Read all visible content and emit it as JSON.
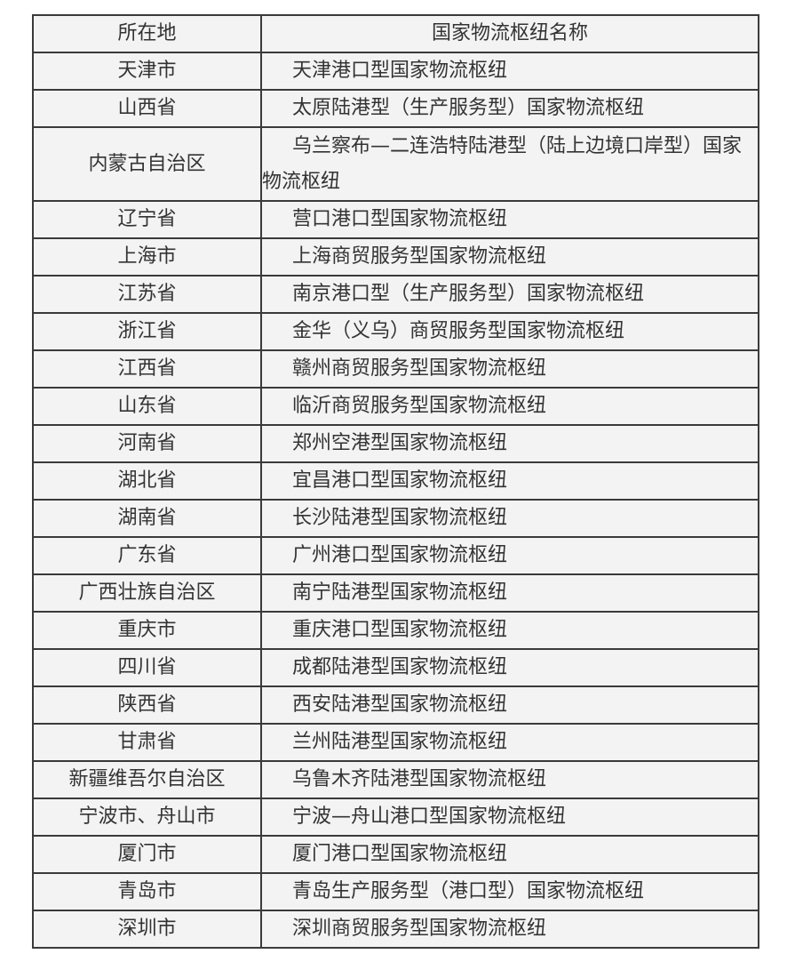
{
  "table": {
    "headers": [
      "所在地",
      "国家物流枢纽名称"
    ],
    "rows": [
      {
        "location": "天津市",
        "hub": "天津港口型国家物流枢纽"
      },
      {
        "location": "山西省",
        "hub": "太原陆港型（生产服务型）国家物流枢纽"
      },
      {
        "location": "内蒙古自治区",
        "hub": "乌兰察布—二连浩特陆港型（陆上边境口岸型）国家物流枢纽"
      },
      {
        "location": "辽宁省",
        "hub": "营口港口型国家物流枢纽"
      },
      {
        "location": "上海市",
        "hub": "上海商贸服务型国家物流枢纽"
      },
      {
        "location": "江苏省",
        "hub": "南京港口型（生产服务型）国家物流枢纽"
      },
      {
        "location": "浙江省",
        "hub": "金华（义乌）商贸服务型国家物流枢纽"
      },
      {
        "location": "江西省",
        "hub": "赣州商贸服务型国家物流枢纽"
      },
      {
        "location": "山东省",
        "hub": "临沂商贸服务型国家物流枢纽"
      },
      {
        "location": "河南省",
        "hub": "郑州空港型国家物流枢纽"
      },
      {
        "location": "湖北省",
        "hub": "宜昌港口型国家物流枢纽"
      },
      {
        "location": "湖南省",
        "hub": "长沙陆港型国家物流枢纽"
      },
      {
        "location": "广东省",
        "hub": "广州港口型国家物流枢纽"
      },
      {
        "location": "广西壮族自治区",
        "hub": "南宁陆港型国家物流枢纽"
      },
      {
        "location": "重庆市",
        "hub": "重庆港口型国家物流枢纽"
      },
      {
        "location": "四川省",
        "hub": "成都陆港型国家物流枢纽"
      },
      {
        "location": "陕西省",
        "hub": "西安陆港型国家物流枢纽"
      },
      {
        "location": "甘肃省",
        "hub": "兰州陆港型国家物流枢纽"
      },
      {
        "location": "新疆维吾尔自治区",
        "hub": "乌鲁木齐陆港型国家物流枢纽"
      },
      {
        "location": "宁波市、舟山市",
        "hub": "宁波—舟山港口型国家物流枢纽"
      },
      {
        "location": "厦门市",
        "hub": "厦门港口型国家物流枢纽"
      },
      {
        "location": "青岛市",
        "hub": "青岛生产服务型（港口型）国家物流枢纽"
      },
      {
        "location": "深圳市",
        "hub": "深圳商贸服务型国家物流枢纽"
      }
    ]
  }
}
